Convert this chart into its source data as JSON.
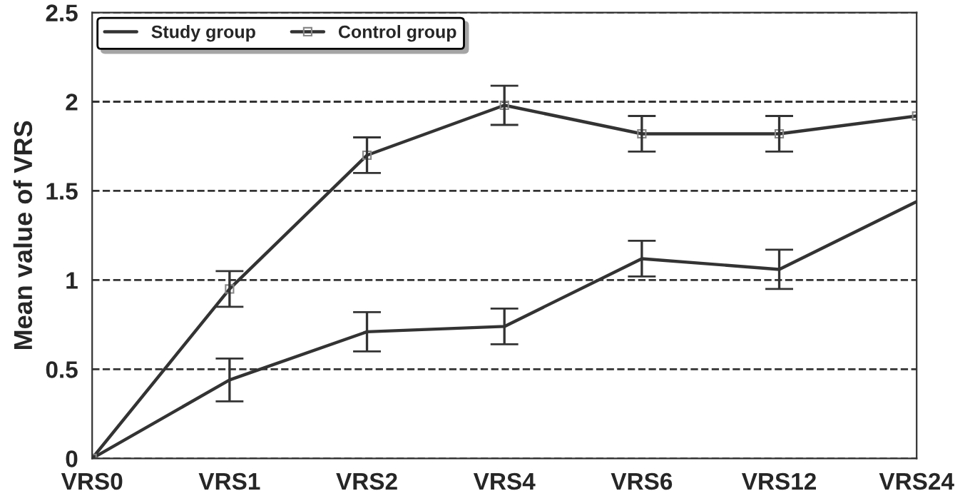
{
  "chart_data": {
    "type": "line",
    "ylabel": "Mean value of VRS",
    "categories": [
      "VRS0",
      "VRS1",
      "VRS2",
      "VRS4",
      "VRS6",
      "VRS12",
      "VRS24"
    ],
    "series": [
      {
        "name": "Study group",
        "color": "#333333",
        "marker": "none",
        "values": [
          0,
          0.44,
          0.71,
          0.74,
          1.12,
          1.06,
          1.44
        ],
        "errors": [
          null,
          0.12,
          0.11,
          0.1,
          0.1,
          0.11,
          null
        ]
      },
      {
        "name": "Control group",
        "color": "#333333",
        "marker": "square",
        "values": [
          0,
          0.95,
          1.7,
          1.98,
          1.82,
          1.82,
          1.92
        ],
        "errors": [
          null,
          0.1,
          0.1,
          0.11,
          0.1,
          0.1,
          null
        ]
      }
    ],
    "ylim": [
      0,
      2.5
    ],
    "yticks": [
      0,
      0.5,
      1,
      1.5,
      2,
      2.5
    ],
    "grid": "y",
    "legend": "top left",
    "line_style": "solid"
  }
}
